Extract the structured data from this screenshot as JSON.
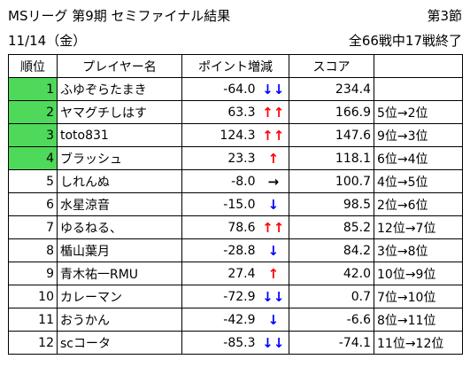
{
  "header": {
    "title": "MSリーグ 第9期 セミファイナル結果",
    "section": "第3節",
    "date": "11/14（金）",
    "progress": "全66戦中17戦終了"
  },
  "colors": {
    "highlight": "#4fd95a",
    "up": "#ff0000",
    "down": "#0000ff"
  },
  "columns": {
    "rank": "順位",
    "player": "プレイヤー名",
    "points": "ポイント増減",
    "score": "スコア"
  },
  "rows": [
    {
      "rank": "1",
      "name": "ふゆぞらたまき",
      "delta": "-64.0",
      "arrow": "↓↓",
      "dir": "down",
      "score": "234.4",
      "move": "",
      "highlight": true
    },
    {
      "rank": "2",
      "name": "ヤマグチしはす",
      "delta": "63.3",
      "arrow": "↑↑",
      "dir": "up",
      "score": "166.9",
      "move": "5位→2位",
      "highlight": true
    },
    {
      "rank": "3",
      "name": "toto831",
      "delta": "124.3",
      "arrow": "↑↑",
      "dir": "up",
      "score": "147.6",
      "move": "9位→3位",
      "highlight": true
    },
    {
      "rank": "4",
      "name": "ブラッシュ",
      "delta": "23.3",
      "arrow": "↑",
      "dir": "up",
      "score": "118.1",
      "move": "6位→4位",
      "highlight": true
    },
    {
      "rank": "5",
      "name": "しれんぬ",
      "delta": "-8.0",
      "arrow": "→",
      "dir": "flat",
      "score": "100.7",
      "move": "4位→5位",
      "highlight": false
    },
    {
      "rank": "6",
      "name": "水星涼音",
      "delta": "-15.0",
      "arrow": "↓",
      "dir": "down",
      "score": "98.5",
      "move": "2位→6位",
      "highlight": false
    },
    {
      "rank": "7",
      "name": "ゆるねる、",
      "delta": "78.6",
      "arrow": "↑↑",
      "dir": "up",
      "score": "85.2",
      "move": "12位→7位",
      "highlight": false
    },
    {
      "rank": "8",
      "name": "楯山葉月",
      "delta": "-28.8",
      "arrow": "↓",
      "dir": "down",
      "score": "84.2",
      "move": "3位→8位",
      "highlight": false
    },
    {
      "rank": "9",
      "name": "青木祐一RMU",
      "delta": "27.4",
      "arrow": "↑",
      "dir": "up",
      "score": "42.0",
      "move": "10位→9位",
      "highlight": false
    },
    {
      "rank": "10",
      "name": "カレーマン",
      "delta": "-72.9",
      "arrow": "↓↓",
      "dir": "down",
      "score": "0.7",
      "move": "7位→10位",
      "highlight": false
    },
    {
      "rank": "11",
      "name": "おうかん",
      "delta": "-42.9",
      "arrow": "↓",
      "dir": "down",
      "score": "-6.6",
      "move": "8位→11位",
      "highlight": false
    },
    {
      "rank": "12",
      "name": "scコータ",
      "delta": "-85.3",
      "arrow": "↓↓",
      "dir": "down",
      "score": "-74.1",
      "move": "11位→12位",
      "highlight": false
    }
  ]
}
